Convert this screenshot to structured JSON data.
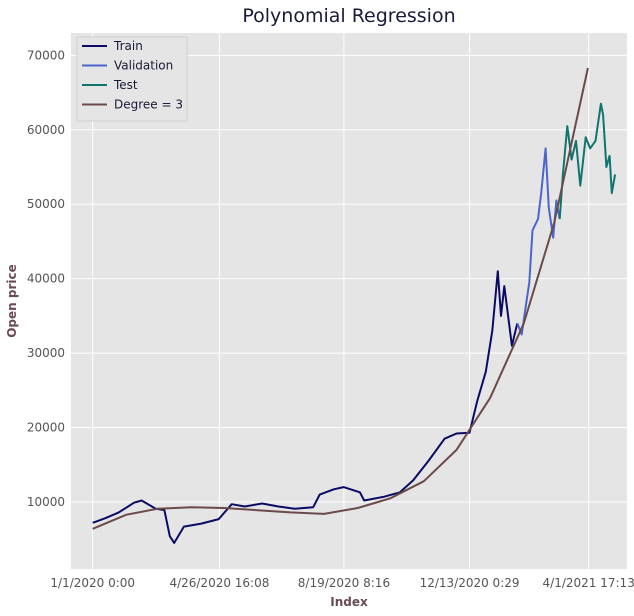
{
  "chart_data": {
    "type": "line",
    "title": "Polynomial Regression",
    "xlabel": "Index",
    "ylabel": "Open price",
    "x_tick_labels": [
      "1/1/2020 0:00",
      "4/26/2020 16:08",
      "8/19/2020 8:16",
      "12/13/2020 0:29",
      "4/1/2021 17:13"
    ],
    "x_ticks": [
      "2020-01-01 00:00",
      "2020-04-26 16:08",
      "2020-08-19 08:16",
      "2020-12-13 00:29",
      "2021-04-01 17:13"
    ],
    "y_ticks": [
      10000,
      20000,
      30000,
      40000,
      50000,
      60000,
      70000
    ],
    "y_tick_labels": [
      "10000",
      "20000",
      "30000",
      "40000",
      "50000",
      "60000",
      "70000"
    ],
    "ylim": [
      1000,
      73000
    ],
    "xlim": [
      "2019-12-12",
      "2021-05-07"
    ],
    "grid": true,
    "legend_position": "top-left",
    "series": [
      {
        "name": "Train",
        "color": "#0b0b66",
        "points": [
          [
            "2020-01-01",
            7200
          ],
          [
            "2020-01-12",
            7800
          ],
          [
            "2020-01-25",
            8600
          ],
          [
            "2020-02-08",
            9900
          ],
          [
            "2020-02-15",
            10200
          ],
          [
            "2020-02-28",
            9100
          ],
          [
            "2020-03-07",
            8900
          ],
          [
            "2020-03-12",
            5400
          ],
          [
            "2020-03-16",
            4500
          ],
          [
            "2020-03-25",
            6700
          ],
          [
            "2020-04-10",
            7100
          ],
          [
            "2020-04-26",
            7700
          ],
          [
            "2020-05-08",
            9700
          ],
          [
            "2020-05-20",
            9400
          ],
          [
            "2020-06-05",
            9800
          ],
          [
            "2020-06-20",
            9400
          ],
          [
            "2020-07-05",
            9100
          ],
          [
            "2020-07-22",
            9300
          ],
          [
            "2020-07-28",
            11000
          ],
          [
            "2020-08-10",
            11700
          ],
          [
            "2020-08-19",
            12000
          ],
          [
            "2020-09-03",
            11300
          ],
          [
            "2020-09-07",
            10200
          ],
          [
            "2020-09-25",
            10700
          ],
          [
            "2020-10-10",
            11300
          ],
          [
            "2020-10-22",
            12900
          ],
          [
            "2020-11-05",
            15500
          ],
          [
            "2020-11-20",
            18500
          ],
          [
            "2020-12-01",
            19200
          ],
          [
            "2020-12-13",
            19300
          ],
          [
            "2020-12-20",
            23500
          ],
          [
            "2020-12-28",
            27500
          ],
          [
            "2021-01-03",
            33000
          ],
          [
            "2021-01-08",
            41000
          ],
          [
            "2021-01-11",
            35000
          ],
          [
            "2021-01-14",
            39000
          ],
          [
            "2021-01-21",
            31000
          ],
          [
            "2021-01-26",
            34000
          ]
        ]
      },
      {
        "name": "Validation",
        "color": "#4a66cc",
        "points": [
          [
            "2021-01-26",
            34000
          ],
          [
            "2021-01-30",
            32500
          ],
          [
            "2021-02-03",
            36500
          ],
          [
            "2021-02-06",
            39500
          ],
          [
            "2021-02-09",
            46500
          ],
          [
            "2021-02-14",
            48000
          ],
          [
            "2021-02-17",
            51500
          ],
          [
            "2021-02-21",
            57500
          ],
          [
            "2021-02-24",
            49500
          ],
          [
            "2021-02-28",
            45500
          ],
          [
            "2021-03-03",
            50500
          ],
          [
            "2021-03-06",
            48000
          ]
        ]
      },
      {
        "name": "Test",
        "color": "#0f766e",
        "points": [
          [
            "2021-03-06",
            48000
          ],
          [
            "2021-03-09",
            54000
          ],
          [
            "2021-03-13",
            60500
          ],
          [
            "2021-03-17",
            56000
          ],
          [
            "2021-03-21",
            58500
          ],
          [
            "2021-03-25",
            52500
          ],
          [
            "2021-03-30",
            59000
          ],
          [
            "2021-04-03",
            57500
          ],
          [
            "2021-04-08",
            58500
          ],
          [
            "2021-04-13",
            63500
          ],
          [
            "2021-04-15",
            62000
          ],
          [
            "2021-04-18",
            55000
          ],
          [
            "2021-04-21",
            56500
          ],
          [
            "2021-04-23",
            51500
          ],
          [
            "2021-04-26",
            54000
          ]
        ]
      },
      {
        "name": "Degree = 3",
        "color": "#6b4a4a",
        "points": [
          [
            "2020-01-01",
            6400
          ],
          [
            "2020-02-01",
            8300
          ],
          [
            "2020-03-01",
            9100
          ],
          [
            "2020-04-01",
            9300
          ],
          [
            "2020-05-01",
            9200
          ],
          [
            "2020-06-01",
            8900
          ],
          [
            "2020-07-01",
            8600
          ],
          [
            "2020-08-01",
            8400
          ],
          [
            "2020-09-01",
            9200
          ],
          [
            "2020-10-01",
            10500
          ],
          [
            "2020-11-01",
            12800
          ],
          [
            "2020-12-01",
            17000
          ],
          [
            "2021-01-01",
            24000
          ],
          [
            "2021-02-01",
            34000
          ],
          [
            "2021-03-01",
            47500
          ],
          [
            "2021-04-01",
            68300
          ]
        ]
      }
    ]
  }
}
